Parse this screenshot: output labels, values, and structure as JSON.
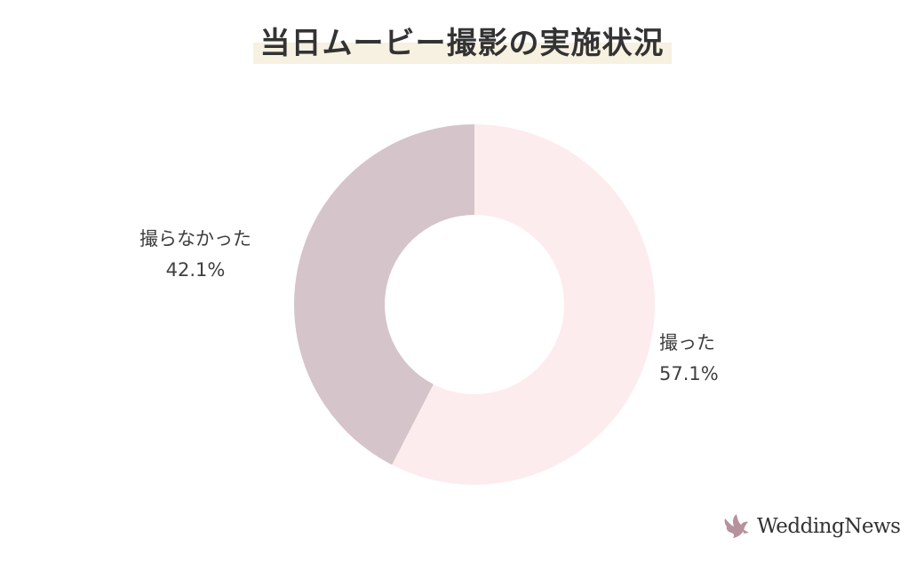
{
  "chart_data": {
    "type": "pie",
    "title": "当日ムービー撮影の実施状況",
    "style": "donut",
    "slices": [
      {
        "label": "撮った",
        "value": 57.1,
        "value_label": "57.1%",
        "color": "#fdecee"
      },
      {
        "label": "撮らなかった",
        "value": 42.1,
        "value_label": "42.1%",
        "color": "#d5c4ca"
      }
    ],
    "start": "top",
    "direction": "clockwise"
  },
  "brand": {
    "name": "WeddingNews",
    "icon": "dove-icon",
    "color": "#b7929c"
  }
}
